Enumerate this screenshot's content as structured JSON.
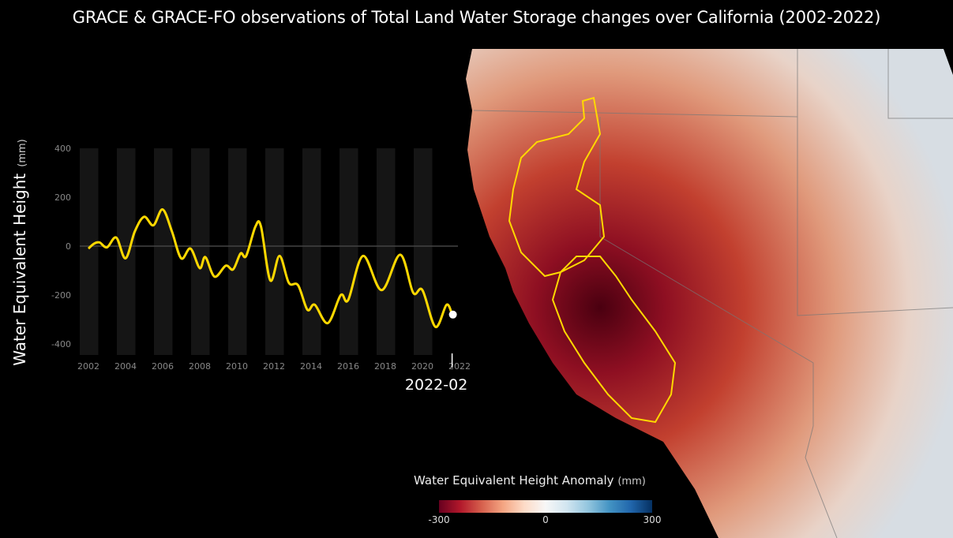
{
  "title": "GRACE & GRACE-FO observations of Total Land Water Storage changes over California (2002-2022)",
  "legend": {
    "title": "Water Equivalent Height Anomaly",
    "unit": "(mm)",
    "ticks": [
      "-300",
      "0",
      "300"
    ],
    "colors": {
      "low": "#67001f",
      "mid": "#f7f7f7",
      "high": "#053061"
    }
  },
  "chart_data": {
    "type": "line",
    "title": "",
    "xlabel": "",
    "ylabel": "Water Equivalent Height",
    "ylabel_unit": "(mm)",
    "xlim": [
      2001.6,
      2022.4
    ],
    "ylim": [
      -450,
      420
    ],
    "xticks": [
      "2002",
      "2004",
      "2006",
      "2008",
      "2010",
      "2012",
      "2014",
      "2016",
      "2018",
      "2020",
      "2022"
    ],
    "yticks": [
      "400",
      "200",
      "0",
      "-200",
      "-400"
    ],
    "current_label": "2022-02",
    "line_color": "#ffd800",
    "series": [
      {
        "name": "Total Land Water Storage",
        "x": [
          2002.0,
          2002.3,
          2002.6,
          2003.0,
          2003.5,
          2004.0,
          2004.5,
          2005.0,
          2005.5,
          2006.0,
          2006.5,
          2007.0,
          2007.5,
          2008.0,
          2008.3,
          2008.8,
          2009.4,
          2009.8,
          2010.2,
          2010.5,
          2011.0,
          2011.3,
          2011.8,
          2012.3,
          2012.8,
          2013.3,
          2013.8,
          2014.2,
          2014.9,
          2015.6,
          2016.0,
          2016.8,
          2017.8,
          2018.8,
          2019.5,
          2020.0,
          2020.7,
          2021.3,
          2021.6
        ],
        "y": [
          -10,
          10,
          15,
          -5,
          35,
          -50,
          60,
          120,
          85,
          150,
          60,
          -50,
          -10,
          -90,
          -45,
          -125,
          -80,
          -95,
          -30,
          -40,
          80,
          80,
          -140,
          -40,
          -150,
          -160,
          -260,
          -240,
          -315,
          -200,
          -220,
          -40,
          -180,
          -35,
          -190,
          -180,
          -330,
          -240,
          -280
        ]
      }
    ]
  }
}
